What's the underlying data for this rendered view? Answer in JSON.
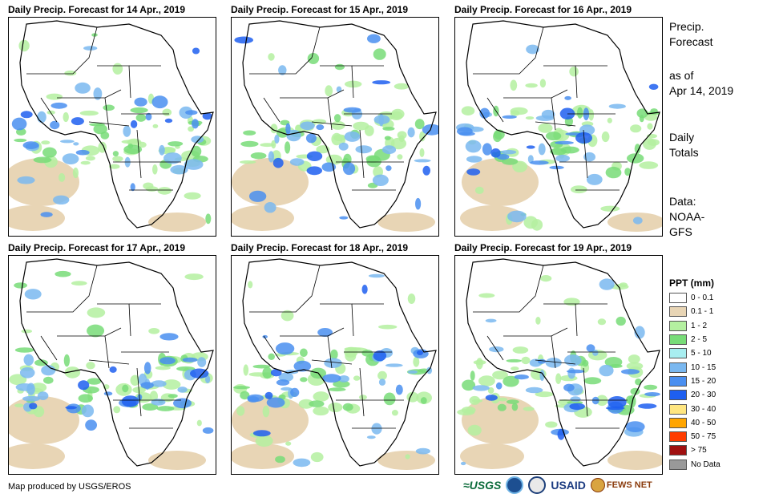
{
  "panels": [
    {
      "title": "Daily Precip. Forecast for 14 Apr., 2019"
    },
    {
      "title": "Daily Precip. Forecast for 15 Apr., 2019"
    },
    {
      "title": "Daily Precip. Forecast for 16 Apr., 2019"
    },
    {
      "title": "Daily Precip. Forecast for 17 Apr., 2019"
    },
    {
      "title": "Daily Precip. Forecast for 18 Apr., 2019"
    },
    {
      "title": "Daily Precip. Forecast for 19 Apr., 2019"
    }
  ],
  "sidebar": {
    "title_line1": "Precip.",
    "title_line2": "Forecast",
    "asof_line1": "as of",
    "asof_line2": "Apr 14, 2019",
    "daily_line1": "Daily",
    "daily_line2": "Totals",
    "source_line1": "Data:",
    "source_line2": "NOAA-",
    "source_line3": "GFS"
  },
  "legend": {
    "title": "PPT (mm)",
    "items": [
      {
        "label": "0 - 0.1",
        "color": "#ffffff"
      },
      {
        "label": "0.1 - 1",
        "color": "#e8d5b5"
      },
      {
        "label": "1 - 2",
        "color": "#b4f0a0"
      },
      {
        "label": "2 - 5",
        "color": "#78dc78"
      },
      {
        "label": "5 - 10",
        "color": "#a8eef0"
      },
      {
        "label": "10 - 15",
        "color": "#7ab8f0"
      },
      {
        "label": "15 - 20",
        "color": "#4a8ff0"
      },
      {
        "label": "20 - 30",
        "color": "#1e5ff0"
      },
      {
        "label": "30 - 40",
        "color": "#ffe680"
      },
      {
        "label": "40 - 50",
        "color": "#ffa500"
      },
      {
        "label": "50 - 75",
        "color": "#ff3c00"
      },
      {
        "label": "> 75",
        "color": "#a01010"
      },
      {
        "label": "No Data",
        "color": "#999999"
      }
    ]
  },
  "footer": {
    "credit": "Map produced by USGS/EROS",
    "logo_usgs": "≈USGS",
    "logo_usaid": "USAID",
    "logo_fews": "FEWS NET"
  }
}
